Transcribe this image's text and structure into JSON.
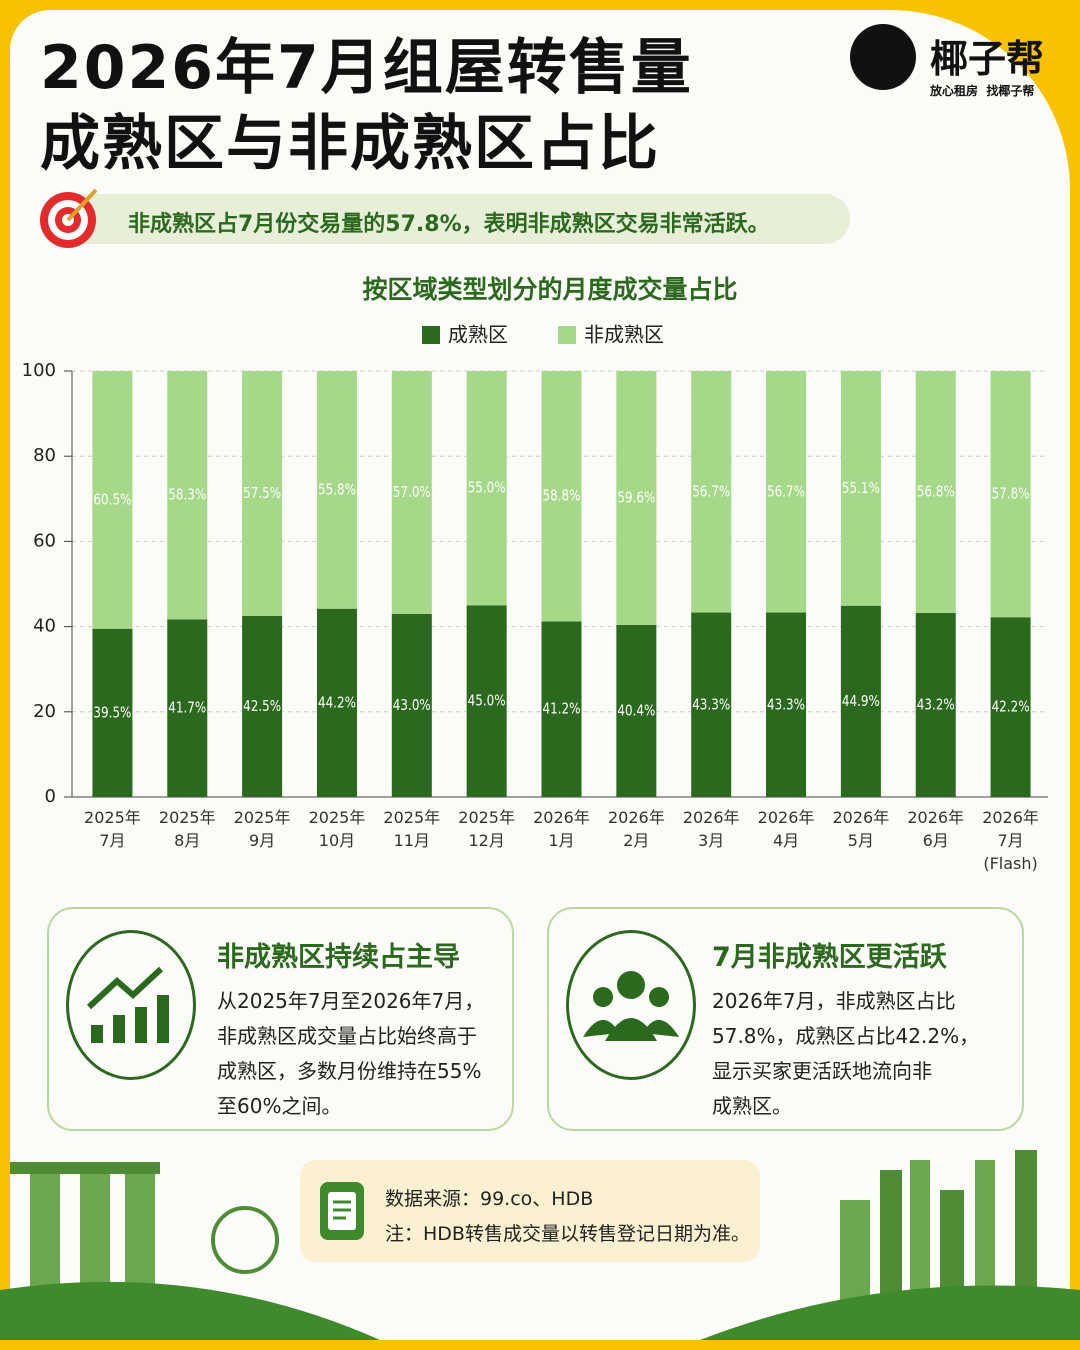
{
  "header": {
    "title_lines": [
      "2026年7月组屋转售量",
      "成熟区与非成熟区占比"
    ],
    "brand": "椰子帮",
    "slogan": "放心租房  找椰子帮"
  },
  "highlight": "非成熟区占7月份交易量的57.8%，表明非成熟区交易非常活跃。",
  "chart_data": {
    "type": "stacked-bar",
    "title": "按区域类型划分的月度成交量占比",
    "categories": [
      "2025年\n7月",
      "2025年\n8月",
      "2025年\n9月",
      "2025年\n10月",
      "2025年\n11月",
      "2025年\n12月",
      "2026年\n1月",
      "2026年\n2月",
      "2026年\n3月",
      "2026年\n4月",
      "2026年\n5月",
      "2026年\n6月",
      "2026年\n7月\n(Flash)"
    ],
    "series": [
      {
        "name": "成熟区",
        "color": "#2b6a1e",
        "values": [
          39.5,
          41.7,
          42.5,
          44.2,
          43.0,
          45.0,
          41.2,
          40.4,
          43.3,
          43.3,
          44.9,
          43.2,
          42.2
        ],
        "value_labels": [
          "39.5%",
          "41.7%",
          "42.5%",
          "44.2%",
          "43.0%",
          "45.0%",
          "41.2%",
          "40.4%",
          "43.3%",
          "43.3%",
          "44.9%",
          "43.2%",
          "42.2%"
        ]
      },
      {
        "name": "非成熟区",
        "color": "#a6d889",
        "values": [
          60.5,
          58.3,
          57.5,
          55.8,
          57.0,
          55.0,
          58.8,
          59.6,
          56.7,
          56.7,
          55.1,
          56.8,
          57.8
        ],
        "value_labels": [
          "60.5%",
          "58.3%",
          "57.5%",
          "55.8%",
          "57.0%",
          "55.0%",
          "58.8%",
          "59.6%",
          "56.7%",
          "56.7%",
          "55.1%",
          "56.8%",
          "57.8%"
        ]
      }
    ],
    "ylim": [
      0,
      100
    ],
    "yticks": [
      0,
      20,
      40,
      60,
      80,
      100
    ],
    "grid": true
  },
  "cards": [
    {
      "title": "非成熟区持续占主导",
      "body": "从2025年7月至2026年7月，\n非成熟区成交量占比始终高于\n成熟区，多数月份维持在55%\n至60%之间。"
    },
    {
      "title": "7月非成熟区更活跃",
      "body": "2026年7月，非成熟区占比\n57.8%，成熟区占比42.2%，\n显示买家更活跃地流向非\n成熟区。"
    }
  ],
  "footer": {
    "source": "数据来源：99.co、HDB",
    "note": "注：HDB转售成交量以转售登记日期为准。"
  }
}
